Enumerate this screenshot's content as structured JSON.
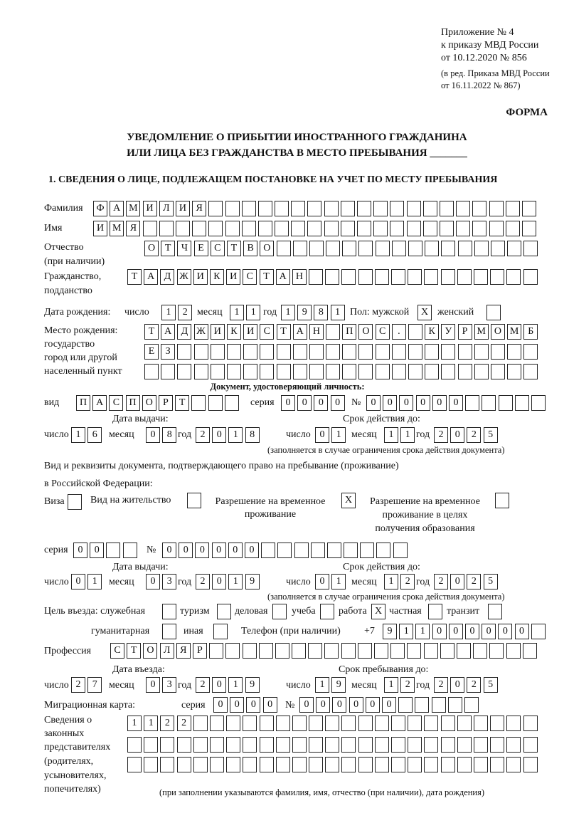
{
  "header": {
    "appendix": [
      "Приложение № 4",
      "к приказу МВД России",
      "от 10.12.2020 № 856"
    ],
    "edition": [
      "(в ред. Приказа МВД России",
      "от 16.11.2022 № 867)"
    ],
    "form_label": "ФОРМА",
    "title_line1": "УВЕДОМЛЕНИЕ О ПРИБЫТИИ ИНОСТРАННОГО ГРАЖДАНИНА",
    "title_line2": "ИЛИ ЛИЦА БЕЗ ГРАЖДАНСТВА В МЕСТО ПРЕБЫВАНИЯ _______",
    "section1": "1. СВЕДЕНИЯ О ЛИЦЕ, ПОДЛЕЖАЩЕМ ПОСТАНОВКЕ НА УЧЕТ ПО МЕСТУ ПРЕБЫВАНИЯ"
  },
  "labels": {
    "surname": "Фамилия",
    "name": "Имя",
    "patronymic": "Отчество",
    "patronymic2": "(при наличии)",
    "citizenship": "Гражданство,",
    "citizenship2": "подданство",
    "birth_date": "Дата рождения:",
    "day": "число",
    "month": "месяц",
    "year": "год",
    "sex": "Пол: мужской",
    "female": "женский",
    "birthplace": [
      "Место рождения:",
      "государство",
      "город или другой",
      "населенный пункт"
    ],
    "id_doc": "Документ, удостоверяющий личность:",
    "kind": "вид",
    "series": "серия",
    "number": "№",
    "issue_date": "Дата выдачи:",
    "valid_until": "Срок действия до:",
    "valid_note": "(заполняется в случае ограничения срока действия документа)",
    "stay_doc1": "Вид и реквизиты документа, подтверждающего право на пребывание (проживание)",
    "stay_doc2": "в Российской Федерации:",
    "visa": "Виза",
    "residence": "Вид на жительство",
    "trp": [
      "Разрешение на временное",
      "проживание"
    ],
    "trp_edu": [
      "Разрешение на временное",
      "проживание в целях",
      "получения образования"
    ],
    "purpose": "Цель въезда: служебная",
    "tourism": "туризм",
    "business": "деловая",
    "study": "учеба",
    "work": "работа",
    "private": "частная",
    "transit": "транзит",
    "humanitarian": "гуманитарная",
    "other": "иная",
    "phone": "Телефон (при наличии)",
    "phone_prefix": "+7",
    "profession": "Профессия",
    "entry_date": "Дата въезда:",
    "stay_until": "Срок пребывания до:",
    "migration_card": "Миграционная карта:",
    "reps": [
      "Сведения о",
      "законных",
      "представителях",
      "(родителях,",
      "усыновителях,",
      "попечителях)"
    ],
    "reps_note": "(при заполнении указываются фамилия, имя, отчество (при наличии), дата рождения)"
  },
  "fields": {
    "surname": [
      "Ф",
      "А",
      "М",
      "И",
      "Л",
      "И",
      "Я",
      "",
      "",
      "",
      "",
      "",
      "",
      "",
      "",
      "",
      "",
      "",
      "",
      "",
      "",
      "",
      "",
      "",
      "",
      "",
      ""
    ],
    "name": [
      "И",
      "М",
      "Я",
      "",
      "",
      "",
      "",
      "",
      "",
      "",
      "",
      "",
      "",
      "",
      "",
      "",
      "",
      "",
      "",
      "",
      "",
      "",
      "",
      "",
      "",
      "",
      ""
    ],
    "patronymic": [
      "О",
      "Т",
      "Ч",
      "Е",
      "С",
      "Т",
      "В",
      "О",
      "",
      "",
      "",
      "",
      "",
      "",
      "",
      "",
      "",
      "",
      "",
      "",
      "",
      "",
      "",
      ""
    ],
    "citizenship": [
      "Т",
      "А",
      "Д",
      "Ж",
      "И",
      "К",
      "И",
      "С",
      "Т",
      "А",
      "Н",
      "",
      "",
      "",
      "",
      "",
      "",
      "",
      "",
      "",
      "",
      "",
      "",
      "",
      ""
    ],
    "birth_day": [
      "1",
      "2"
    ],
    "birth_month": [
      "1",
      "1"
    ],
    "birth_year": [
      "1",
      "9",
      "8",
      "1"
    ],
    "sex_male": "X",
    "sex_female": "",
    "birthplace1": [
      "Т",
      "А",
      "Д",
      "Ж",
      "И",
      "К",
      "И",
      "С",
      "Т",
      "А",
      "Н",
      "",
      "П",
      "О",
      "С",
      ".",
      "",
      "К",
      "У",
      "Р",
      "М",
      "О",
      "М",
      "Б"
    ],
    "birthplace2": [
      "Е",
      "З",
      "",
      "",
      "",
      "",
      "",
      "",
      "",
      "",
      "",
      "",
      "",
      "",
      "",
      "",
      "",
      "",
      "",
      "",
      "",
      "",
      "",
      ""
    ],
    "birthplace3": [
      "",
      "",
      "",
      "",
      "",
      "",
      "",
      "",
      "",
      "",
      "",
      "",
      "",
      "",
      "",
      "",
      "",
      "",
      "",
      "",
      "",
      "",
      "",
      ""
    ],
    "doc_kind": [
      "П",
      "А",
      "С",
      "П",
      "О",
      "Р",
      "Т",
      "",
      "",
      ""
    ],
    "doc_series": [
      "0",
      "0",
      "0",
      "0"
    ],
    "doc_number": [
      "0",
      "0",
      "0",
      "0",
      "0",
      "0",
      "",
      "",
      "",
      "",
      ""
    ],
    "doc_issue_day": [
      "1",
      "6"
    ],
    "doc_issue_month": [
      "0",
      "8"
    ],
    "doc_issue_year": [
      "2",
      "0",
      "1",
      "8"
    ],
    "doc_valid_day": [
      "0",
      "1"
    ],
    "doc_valid_month": [
      "1",
      "1"
    ],
    "doc_valid_year": [
      "2",
      "0",
      "2",
      "5"
    ],
    "visa": "",
    "residence": "",
    "trp": "X",
    "trp_edu": "",
    "stay_series": [
      "0",
      "0",
      "",
      ""
    ],
    "stay_number": [
      "0",
      "0",
      "0",
      "0",
      "0",
      "0",
      "",
      "",
      "",
      "",
      "",
      "",
      "",
      "",
      ""
    ],
    "stay_issue_day": [
      "0",
      "1"
    ],
    "stay_issue_month": [
      "0",
      "3"
    ],
    "stay_issue_year": [
      "2",
      "0",
      "1",
      "9"
    ],
    "stay_valid_day": [
      "0",
      "1"
    ],
    "stay_valid_month": [
      "1",
      "2"
    ],
    "stay_valid_year": [
      "2",
      "0",
      "2",
      "5"
    ],
    "purpose_service": "",
    "purpose_tourism": "",
    "purpose_business": "",
    "purpose_study": "",
    "purpose_work": "X",
    "purpose_private": "",
    "purpose_transit": "",
    "purpose_humanitarian": "",
    "purpose_other": "",
    "phone": [
      "9",
      "1",
      "1",
      "0",
      "0",
      "0",
      "0",
      "0",
      "0",
      ""
    ],
    "profession": [
      "С",
      "Т",
      "О",
      "Л",
      "Я",
      "Р",
      "",
      "",
      "",
      "",
      "",
      "",
      "",
      "",
      "",
      "",
      "",
      "",
      "",
      "",
      "",
      "",
      "",
      "",
      "",
      ""
    ],
    "entry_day": [
      "2",
      "7"
    ],
    "entry_month": [
      "0",
      "3"
    ],
    "entry_year": [
      "2",
      "0",
      "1",
      "9"
    ],
    "stay_until_day": [
      "1",
      "9"
    ],
    "stay_until_month": [
      "1",
      "2"
    ],
    "stay_until_year": [
      "2",
      "0",
      "2",
      "5"
    ],
    "mc_series": [
      "0",
      "0",
      "0",
      "0"
    ],
    "mc_number": [
      "0",
      "0",
      "0",
      "0",
      "0",
      "0",
      "",
      "",
      "",
      "",
      ""
    ],
    "reps1": [
      "1",
      "1",
      "2",
      "2",
      "",
      "",
      "",
      "",
      "",
      "",
      "",
      "",
      "",
      "",
      "",
      "",
      "",
      "",
      "",
      "",
      "",
      "",
      "",
      "",
      ""
    ],
    "reps2": [
      "",
      "",
      "",
      "",
      "",
      "",
      "",
      "",
      "",
      "",
      "",
      "",
      "",
      "",
      "",
      "",
      "",
      "",
      "",
      "",
      "",
      "",
      "",
      "",
      ""
    ],
    "reps3": [
      "",
      "",
      "",
      "",
      "",
      "",
      "",
      "",
      "",
      "",
      "",
      "",
      "",
      "",
      "",
      "",
      "",
      "",
      "",
      "",
      "",
      "",
      "",
      "",
      ""
    ]
  }
}
